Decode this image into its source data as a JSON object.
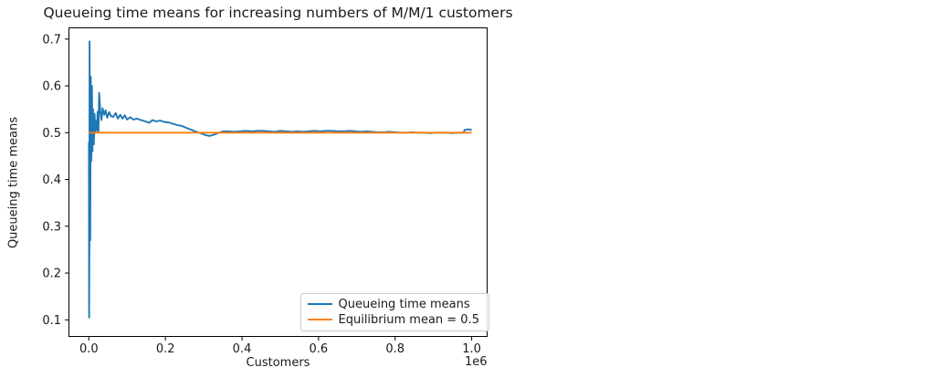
{
  "chart_data": {
    "type": "line",
    "title": "Queueing time means for increasing numbers of M/M/1 customers",
    "xlabel": "Customers",
    "ylabel": "Queueing time means",
    "x_offset_text": "1e6",
    "x_ticks": {
      "values": [
        0.0,
        0.2,
        0.4,
        0.6,
        0.8,
        1.0
      ],
      "labels": [
        "0.0",
        "0.2",
        "0.4",
        "0.6",
        "0.8",
        "1.0"
      ]
    },
    "y_ticks": {
      "values": [
        0.1,
        0.2,
        0.3,
        0.4,
        0.5,
        0.6,
        0.7
      ],
      "labels": [
        "0.1",
        "0.2",
        "0.3",
        "0.4",
        "0.5",
        "0.6",
        "0.7"
      ]
    },
    "axes": {
      "x_unit_note": "x values are in units of 1e6 customers",
      "x_range_shown": [
        0.0,
        1.0
      ],
      "y_range_shown": [
        0.1,
        0.7
      ],
      "grid": false,
      "legend_position": "lower right"
    },
    "colors": {
      "text": "#1a1a1a",
      "spine": "#000000",
      "legend_border": "#cccccc",
      "background": "#ffffff"
    },
    "series": [
      {
        "name": "Queueing time means",
        "color": "#1f77b4",
        "points": [
          [
            0.0002,
            0.48
          ],
          [
            0.0008,
            0.105
          ],
          [
            0.0014,
            0.27
          ],
          [
            0.002,
            0.695
          ],
          [
            0.0035,
            0.27
          ],
          [
            0.005,
            0.62
          ],
          [
            0.0065,
            0.44
          ],
          [
            0.008,
            0.6
          ],
          [
            0.0095,
            0.46
          ],
          [
            0.011,
            0.55
          ],
          [
            0.013,
            0.475
          ],
          [
            0.015,
            0.54
          ],
          [
            0.017,
            0.5
          ],
          [
            0.019,
            0.525
          ],
          [
            0.021,
            0.505
          ],
          [
            0.023,
            0.545
          ],
          [
            0.025,
            0.5
          ],
          [
            0.027,
            0.585
          ],
          [
            0.03,
            0.545
          ],
          [
            0.033,
            0.527
          ],
          [
            0.036,
            0.552
          ],
          [
            0.04,
            0.538
          ],
          [
            0.044,
            0.548
          ],
          [
            0.048,
            0.532
          ],
          [
            0.053,
            0.544
          ],
          [
            0.058,
            0.535
          ],
          [
            0.064,
            0.534
          ],
          [
            0.07,
            0.542
          ],
          [
            0.076,
            0.53
          ],
          [
            0.082,
            0.538
          ],
          [
            0.088,
            0.53
          ],
          [
            0.094,
            0.537
          ],
          [
            0.1,
            0.528
          ],
          [
            0.108,
            0.533
          ],
          [
            0.116,
            0.528
          ],
          [
            0.126,
            0.53
          ],
          [
            0.136,
            0.527
          ],
          [
            0.148,
            0.524
          ],
          [
            0.158,
            0.521
          ],
          [
            0.166,
            0.527
          ],
          [
            0.176,
            0.524
          ],
          [
            0.186,
            0.526
          ],
          [
            0.196,
            0.523
          ],
          [
            0.208,
            0.522
          ],
          [
            0.22,
            0.519
          ],
          [
            0.232,
            0.516
          ],
          [
            0.244,
            0.514
          ],
          [
            0.256,
            0.51
          ],
          [
            0.268,
            0.506
          ],
          [
            0.28,
            0.502
          ],
          [
            0.292,
            0.499
          ],
          [
            0.304,
            0.495
          ],
          [
            0.316,
            0.493
          ],
          [
            0.328,
            0.496
          ],
          [
            0.34,
            0.5
          ],
          [
            0.352,
            0.503
          ],
          [
            0.366,
            0.503
          ],
          [
            0.38,
            0.502
          ],
          [
            0.395,
            0.503
          ],
          [
            0.41,
            0.504
          ],
          [
            0.425,
            0.503
          ],
          [
            0.44,
            0.504
          ],
          [
            0.455,
            0.504
          ],
          [
            0.47,
            0.503
          ],
          [
            0.485,
            0.502
          ],
          [
            0.5,
            0.504
          ],
          [
            0.515,
            0.503
          ],
          [
            0.53,
            0.502
          ],
          [
            0.545,
            0.503
          ],
          [
            0.56,
            0.502
          ],
          [
            0.575,
            0.503
          ],
          [
            0.59,
            0.504
          ],
          [
            0.605,
            0.503
          ],
          [
            0.62,
            0.504
          ],
          [
            0.635,
            0.504
          ],
          [
            0.65,
            0.503
          ],
          [
            0.665,
            0.503
          ],
          [
            0.68,
            0.504
          ],
          [
            0.695,
            0.503
          ],
          [
            0.71,
            0.502
          ],
          [
            0.725,
            0.503
          ],
          [
            0.74,
            0.502
          ],
          [
            0.755,
            0.501
          ],
          [
            0.77,
            0.501
          ],
          [
            0.785,
            0.502
          ],
          [
            0.8,
            0.501
          ],
          [
            0.815,
            0.5
          ],
          [
            0.83,
            0.5
          ],
          [
            0.845,
            0.501
          ],
          [
            0.86,
            0.5
          ],
          [
            0.875,
            0.5
          ],
          [
            0.89,
            0.499
          ],
          [
            0.905,
            0.5
          ],
          [
            0.92,
            0.5
          ],
          [
            0.935,
            0.5
          ],
          [
            0.95,
            0.499
          ],
          [
            0.965,
            0.5
          ],
          [
            0.978,
            0.5
          ],
          [
            0.982,
            0.506
          ],
          [
            0.99,
            0.507
          ],
          [
            1.0,
            0.506
          ]
        ]
      },
      {
        "name": "Equilibrium mean = 0.5",
        "color": "#ff7f0e",
        "points": [
          [
            0.0,
            0.5
          ],
          [
            1.0,
            0.5
          ]
        ]
      }
    ]
  }
}
